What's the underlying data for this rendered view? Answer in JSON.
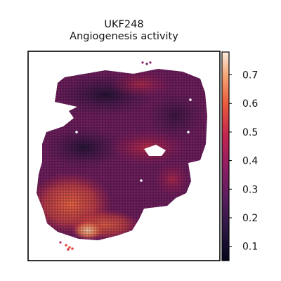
{
  "chart_data": {
    "type": "heatmap",
    "title": "UKF248",
    "subtitle": "Angiogenesis activity",
    "xlabel": "",
    "ylabel": "",
    "grid": false,
    "legend": "colorbar-right",
    "colorbar": {
      "colormap": "rocket",
      "range": [
        0.05,
        0.78
      ],
      "ticks": [
        0.1,
        0.2,
        0.3,
        0.4,
        0.5,
        0.6,
        0.7
      ]
    },
    "regions": [
      {
        "name": "high-activity cluster (lower-left)",
        "level": 0.6
      },
      {
        "name": "bright spot (bottom)",
        "level": 0.75
      },
      {
        "name": "moderate band (right-center)",
        "level": 0.45
      },
      {
        "name": "low-activity core (upper-center)",
        "level": 0.15
      },
      {
        "name": "tissue background",
        "level": 0.3
      }
    ]
  }
}
